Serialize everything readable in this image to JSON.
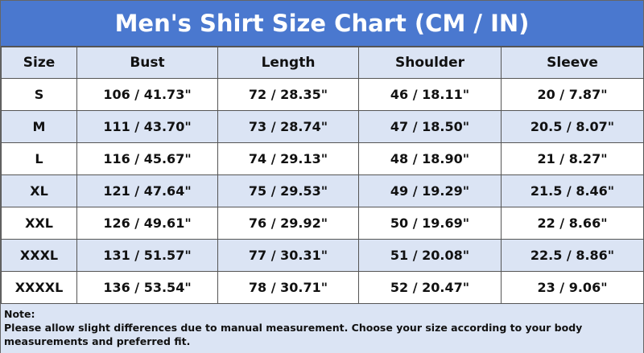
{
  "title": "Men's Shirt Size Chart (CM / IN)",
  "table": {
    "header": [
      "Size",
      "Bust",
      "Length",
      "Shoulder",
      "Sleeve"
    ],
    "rows": [
      [
        "S",
        "106 / 41.73\"",
        "72 / 28.35\"",
        "46 / 18.11\"",
        "20 / 7.87\""
      ],
      [
        "M",
        "111 / 43.70\"",
        "73 / 28.74\"",
        "47 / 18.50\"",
        "20.5 / 8.07\""
      ],
      [
        "L",
        "116 / 45.67\"",
        "74 / 29.13\"",
        "48 / 18.90\"",
        "21 / 8.27\""
      ],
      [
        "XL",
        "121 / 47.64\"",
        "75 / 29.53\"",
        "49 / 19.29\"",
        "21.5 / 8.46\""
      ],
      [
        "XXL",
        "126 / 49.61\"",
        "76 / 29.92\"",
        "50 / 19.69\"",
        "22 / 8.66\""
      ],
      [
        "XXXL",
        "131 / 51.57\"",
        "77 / 30.31\"",
        "51 / 20.08\"",
        "22.5 / 8.86\""
      ],
      [
        "XXXXL",
        "136 / 53.54\"",
        "78 / 30.71\"",
        "52 / 20.47\"",
        "23 / 9.06\""
      ]
    ]
  },
  "note": {
    "label": "Note:",
    "text": "Please allow slight differences due to manual measurement. Choose your size according to your body measurements and preferred fit."
  }
}
